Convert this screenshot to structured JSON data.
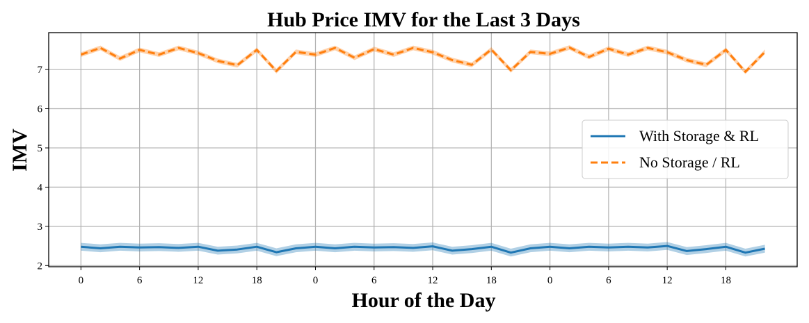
{
  "chart_data": {
    "type": "line",
    "title": "Hub Price IMV for the Last 3 Days",
    "xlabel": "Hour of the Day",
    "ylabel": "IMV",
    "xticks": [
      0,
      6,
      12,
      18,
      24,
      30,
      36,
      42,
      48,
      54,
      60,
      66
    ],
    "xtick_labels": [
      "0",
      "6",
      "12",
      "18",
      "0",
      "6",
      "12",
      "18",
      "0",
      "6",
      "12",
      "18"
    ],
    "yticks": [
      2,
      3,
      4,
      5,
      6,
      7
    ],
    "xlim": [
      -3.3,
      73.3
    ],
    "ylim": [
      1.97,
      7.94
    ],
    "grid": true,
    "legend_position": "center-right",
    "x": [
      0,
      2,
      4,
      6,
      8,
      10,
      12,
      14,
      16,
      18,
      20,
      22,
      24,
      26,
      28,
      30,
      32,
      34,
      36,
      38,
      40,
      42,
      44,
      46,
      48,
      50,
      52,
      54,
      56,
      58,
      60,
      62,
      64,
      66,
      68,
      70
    ],
    "series": [
      {
        "name": "With Storage & RL",
        "color": "#1f77b4",
        "style": "solid",
        "values": [
          2.48,
          2.44,
          2.48,
          2.46,
          2.47,
          2.45,
          2.48,
          2.38,
          2.41,
          2.48,
          2.34,
          2.44,
          2.48,
          2.44,
          2.48,
          2.46,
          2.47,
          2.45,
          2.49,
          2.38,
          2.42,
          2.48,
          2.33,
          2.44,
          2.48,
          2.44,
          2.48,
          2.46,
          2.48,
          2.46,
          2.5,
          2.37,
          2.42,
          2.48,
          2.33,
          2.43
        ],
        "band": 0.1
      },
      {
        "name": "No Storage / RL",
        "color": "#ff7f0e",
        "style": "dashed",
        "values": [
          7.38,
          7.55,
          7.28,
          7.5,
          7.38,
          7.55,
          7.42,
          7.22,
          7.11,
          7.5,
          6.96,
          7.45,
          7.38,
          7.55,
          7.3,
          7.52,
          7.38,
          7.55,
          7.44,
          7.24,
          7.12,
          7.51,
          6.98,
          7.45,
          7.4,
          7.56,
          7.32,
          7.53,
          7.38,
          7.55,
          7.44,
          7.24,
          7.12,
          7.5,
          6.94,
          7.45
        ],
        "band": 0.06
      }
    ]
  }
}
